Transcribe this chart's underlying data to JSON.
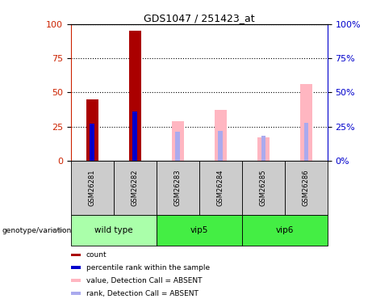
{
  "title": "GDS1047 / 251423_at",
  "samples": [
    "GSM26281",
    "GSM26282",
    "GSM26283",
    "GSM26284",
    "GSM26285",
    "GSM26286"
  ],
  "red_bars": [
    45,
    95,
    0,
    0,
    0,
    0
  ],
  "blue_bars": [
    27,
    36,
    0,
    0,
    0,
    0
  ],
  "pink_bars": [
    0,
    0,
    29,
    37,
    17,
    56
  ],
  "lightblue_bars": [
    0,
    0,
    21,
    22,
    18,
    28
  ],
  "group_defs": [
    {
      "label": "wild type",
      "cols": [
        0,
        1
      ],
      "color": "#AAFFAA"
    },
    {
      "label": "vip5",
      "cols": [
        2,
        3
      ],
      "color": "#44EE44"
    },
    {
      "label": "vip6",
      "cols": [
        4,
        5
      ],
      "color": "#44EE44"
    }
  ],
  "ylim": [
    0,
    100
  ],
  "yticks": [
    0,
    25,
    50,
    75,
    100
  ],
  "red_color": "#AA0000",
  "blue_color": "#0000CC",
  "pink_color": "#FFB6C1",
  "lightblue_color": "#AAAAEE",
  "left_axis_color": "#CC2200",
  "right_axis_color": "#0000CC",
  "grey_cell_color": "#CCCCCC",
  "legend_items": [
    {
      "color": "#AA0000",
      "label": "count"
    },
    {
      "color": "#0000CC",
      "label": "percentile rank within the sample"
    },
    {
      "color": "#FFB6C1",
      "label": "value, Detection Call = ABSENT"
    },
    {
      "color": "#AAAAEE",
      "label": "rank, Detection Call = ABSENT"
    }
  ],
  "genotype_label": "genotype/variation"
}
